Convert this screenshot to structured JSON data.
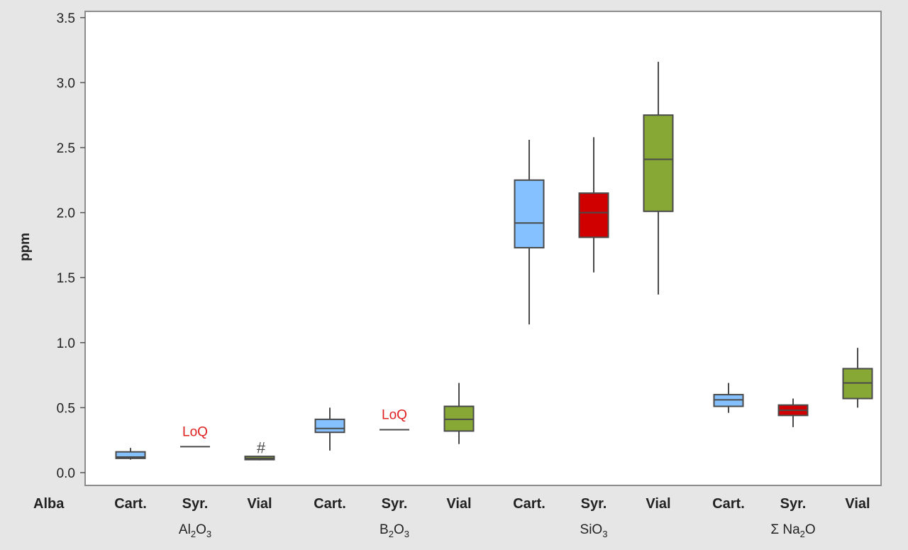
{
  "chart_data": {
    "type": "boxplot",
    "ylabel": "ppm",
    "ylim": [
      -0.1,
      3.55
    ],
    "yticks": [
      "0.0",
      "0.5",
      "1.0",
      "1.5",
      "2.0",
      "2.5",
      "3.0",
      "3.5"
    ],
    "row_label": "Alba",
    "categories": [
      "Cart.",
      "Syr.",
      "Vial"
    ],
    "colors": {
      "Cart.": "#85c1ff",
      "Syr.": "#d10000",
      "Vial": "#88a836"
    },
    "annotation_text": "LoQ",
    "groups": [
      {
        "base": "Al",
        "sub1": "2",
        "mid": "O",
        "sub2": "3",
        "boxes": [
          {
            "category": "Cart.",
            "min": 0.1,
            "q1": 0.11,
            "median": 0.12,
            "q3": 0.16,
            "max": 0.19
          },
          {
            "category": "Syr.",
            "line": 0.2,
            "annotation": "LoQ"
          },
          {
            "category": "Vial",
            "min": 0.095,
            "q1": 0.1,
            "median": 0.11,
            "q3": 0.125,
            "max": 0.13,
            "outliers": [
              0.2
            ]
          }
        ]
      },
      {
        "base": "B",
        "sub1": "2",
        "mid": "O",
        "sub2": "3",
        "boxes": [
          {
            "category": "Cart.",
            "min": 0.17,
            "q1": 0.31,
            "median": 0.34,
            "q3": 0.41,
            "max": 0.5
          },
          {
            "category": "Syr.",
            "line": 0.33,
            "annotation": "LoQ"
          },
          {
            "category": "Vial",
            "min": 0.22,
            "q1": 0.32,
            "median": 0.41,
            "q3": 0.51,
            "max": 0.69
          }
        ]
      },
      {
        "base": "SiO",
        "sub1": "3",
        "mid": "",
        "sub2": "",
        "boxes": [
          {
            "category": "Cart.",
            "min": 1.14,
            "q1": 1.73,
            "median": 1.92,
            "q3": 2.25,
            "max": 2.56
          },
          {
            "category": "Syr.",
            "min": 1.54,
            "q1": 1.81,
            "median": 2.0,
            "q3": 2.15,
            "max": 2.58
          },
          {
            "category": "Vial",
            "min": 1.37,
            "q1": 2.01,
            "median": 2.41,
            "q3": 2.75,
            "max": 3.16
          }
        ]
      },
      {
        "base": "Σ Na",
        "sub1": "2",
        "mid": "O",
        "sub2": "",
        "boxes": [
          {
            "category": "Cart.",
            "min": 0.46,
            "q1": 0.51,
            "median": 0.56,
            "q3": 0.6,
            "max": 0.69
          },
          {
            "category": "Syr.",
            "min": 0.35,
            "q1": 0.44,
            "median": 0.48,
            "q3": 0.52,
            "max": 0.57
          },
          {
            "category": "Vial",
            "min": 0.5,
            "q1": 0.57,
            "median": 0.69,
            "q3": 0.8,
            "max": 0.96
          }
        ]
      }
    ]
  }
}
